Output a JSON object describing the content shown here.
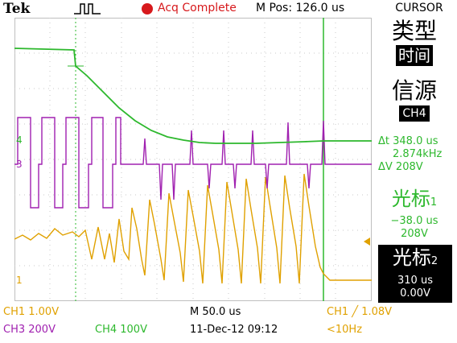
{
  "header": {
    "brand": "Tek",
    "status": "Acq Complete",
    "mpos": "M Pos: 126.0 us",
    "menu_title": "CURSOR"
  },
  "side_menu": {
    "type_label": "类型",
    "type_value": "时间",
    "source_label": "信源",
    "source_value": "CH4",
    "readouts": {
      "delta_t": "Δt  348.0 us",
      "inv_delta_t": "2.874kHz",
      "delta_v": "ΔV  208V"
    },
    "cursor1_label": "光标",
    "cursor1_index": "1",
    "cursor1_time": "−38.0 us",
    "cursor1_volt": "208V",
    "cursor2_label": "光标",
    "cursor2_index": "2",
    "cursor2_time": "310 us",
    "cursor2_volt": "0.00V"
  },
  "footer": {
    "ch1_scale": "CH1  1.00V",
    "ch3_scale": "CH3  200V",
    "ch4_scale": "CH4  100V",
    "timebase": "M 50.0 us",
    "date": "11-Dec-12 09:12",
    "trigger": "CH1 ╱ 1.08V",
    "freq": "<10Hz"
  },
  "markers": {
    "ch4": "4",
    "ch3": "3",
    "ch1": "1"
  },
  "colors": {
    "ch1": "#e0a100",
    "ch3": "#a020b0",
    "ch4": "#2db82d",
    "acq": "#d7191c"
  },
  "icons": {
    "trigger_pulse": "pulse-icon",
    "trigger_position": "trigger-arrow-icon"
  }
}
